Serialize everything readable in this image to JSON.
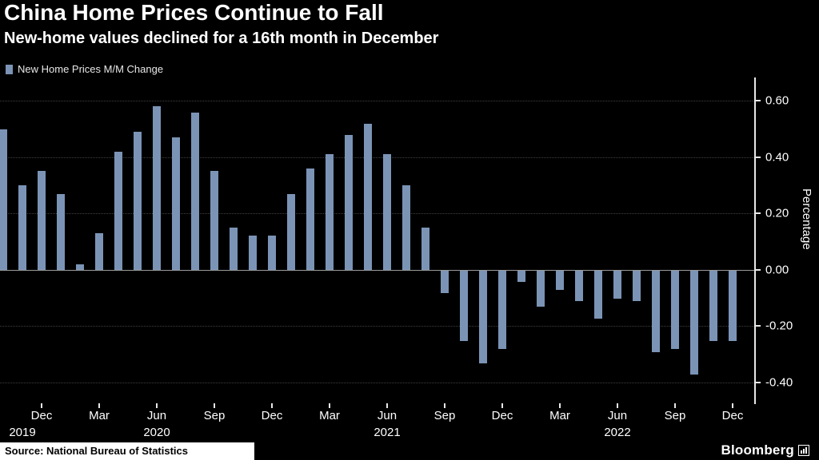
{
  "header": {
    "title": "China Home Prices Continue to Fall",
    "subtitle": "New-home values declined for a 16th month in December"
  },
  "legend": {
    "label": "New Home Prices M/M Change"
  },
  "chart_data": {
    "type": "bar",
    "title": "China Home Prices Continue to Fall",
    "subtitle": "New-home values declined for a 16th month in December",
    "ylabel": "Percentage",
    "ylim": [
      -0.475,
      0.675
    ],
    "grid": "horizontal dotted lines at 0.20 intervals, solid line at zero",
    "legend_position": "top-left",
    "background_color": "#000000",
    "bar_color": "#7b94b6",
    "y_ticks": [
      {
        "value": 0.6,
        "label": "0.60"
      },
      {
        "value": 0.4,
        "label": "0.40"
      },
      {
        "value": 0.2,
        "label": "0.20"
      },
      {
        "value": 0.0,
        "label": "0.00"
      },
      {
        "value": -0.2,
        "label": "-0.20"
      },
      {
        "value": -0.4,
        "label": "-0.40"
      }
    ],
    "series": [
      {
        "name": "New Home Prices M/M Change",
        "x": [
          "Oct 2019",
          "Nov 2019",
          "Dec 2019",
          "Jan 2020",
          "Feb 2020",
          "Mar 2020",
          "Apr 2020",
          "May 2020",
          "Jun 2020",
          "Jul 2020",
          "Aug 2020",
          "Sep 2020",
          "Oct 2020",
          "Nov 2020",
          "Dec 2020",
          "Jan 2021",
          "Feb 2021",
          "Mar 2021",
          "Apr 2021",
          "May 2021",
          "Jun 2021",
          "Jul 2021",
          "Aug 2021",
          "Sep 2021",
          "Oct 2021",
          "Nov 2021",
          "Dec 2021",
          "Jan 2022",
          "Feb 2022",
          "Mar 2022",
          "Apr 2022",
          "May 2022",
          "Jun 2022",
          "Jul 2022",
          "Aug 2022",
          "Sep 2022",
          "Oct 2022",
          "Nov 2022",
          "Dec 2022"
        ],
        "values": [
          0.5,
          0.3,
          0.35,
          0.27,
          0.02,
          0.13,
          0.42,
          0.49,
          0.58,
          0.47,
          0.56,
          0.35,
          0.15,
          0.12,
          0.12,
          0.27,
          0.36,
          0.41,
          0.48,
          0.52,
          0.41,
          0.3,
          0.15,
          -0.08,
          -0.25,
          -0.33,
          -0.28,
          -0.04,
          -0.13,
          -0.07,
          -0.11,
          -0.17,
          -0.1,
          -0.11,
          -0.29,
          -0.28,
          -0.37,
          -0.25,
          -0.25
        ]
      }
    ],
    "x_ticks": [
      {
        "index": 2,
        "label": "Dec"
      },
      {
        "index": 5,
        "label": "Mar"
      },
      {
        "index": 8,
        "label": "Jun"
      },
      {
        "index": 11,
        "label": "Sep"
      },
      {
        "index": 14,
        "label": "Dec"
      },
      {
        "index": 17,
        "label": "Mar"
      },
      {
        "index": 20,
        "label": "Jun"
      },
      {
        "index": 23,
        "label": "Sep"
      },
      {
        "index": 26,
        "label": "Dec"
      },
      {
        "index": 29,
        "label": "Mar"
      },
      {
        "index": 32,
        "label": "Jun"
      },
      {
        "index": 35,
        "label": "Sep"
      },
      {
        "index": 38,
        "label": "Dec"
      }
    ],
    "year_labels": [
      {
        "index": 1,
        "label": "2019"
      },
      {
        "index": 8,
        "label": "2020"
      },
      {
        "index": 20,
        "label": "2021"
      },
      {
        "index": 32,
        "label": "2022"
      }
    ]
  },
  "footer": {
    "source": "Source: National Bureau of Statistics",
    "brand": "Bloomberg"
  }
}
